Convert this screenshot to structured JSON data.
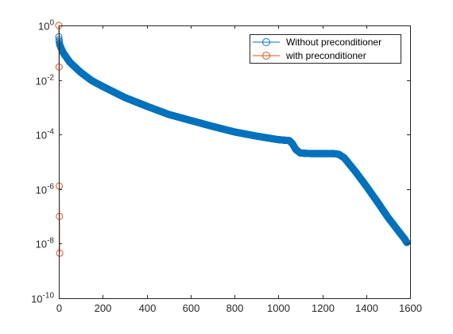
{
  "chart_data": {
    "type": "scatter",
    "title": "",
    "xlabel": "",
    "ylabel": "",
    "xlim": [
      0,
      1600
    ],
    "ylim": [
      1e-10,
      1
    ],
    "yscale": "log",
    "grid": false,
    "legend_position": "top-right",
    "x_ticks": [
      0,
      200,
      400,
      600,
      800,
      1000,
      1200,
      1400,
      1600
    ],
    "x_tick_labels": [
      "0",
      "200",
      "400",
      "600",
      "800",
      "1000",
      "1200",
      "1400",
      "1600"
    ],
    "y_ticks": [
      {
        "value": 1e-10,
        "base": "10",
        "exp": "-10"
      },
      {
        "value": 1e-08,
        "base": "10",
        "exp": "-8"
      },
      {
        "value": 1e-06,
        "base": "10",
        "exp": "-6"
      },
      {
        "value": 0.0001,
        "base": "10",
        "exp": "-4"
      },
      {
        "value": 0.01,
        "base": "10",
        "exp": "-2"
      },
      {
        "value": 1,
        "base": "10",
        "exp": "0"
      }
    ],
    "series": [
      {
        "name": "Without preconditioner",
        "color": "#0072BD",
        "marker": "circle",
        "line": true,
        "keypoints": [
          [
            0,
            0.38
          ],
          [
            1,
            0.3
          ],
          [
            2,
            0.26
          ],
          [
            3,
            0.22
          ],
          [
            5,
            0.19
          ],
          [
            10,
            0.15
          ],
          [
            20,
            0.1
          ],
          [
            50,
            0.045
          ],
          [
            100,
            0.019
          ],
          [
            150,
            0.0095
          ],
          [
            200,
            0.0058
          ],
          [
            300,
            0.0023
          ],
          [
            400,
            0.0011
          ],
          [
            500,
            0.00055
          ],
          [
            600,
            0.00033
          ],
          [
            700,
            0.0002
          ],
          [
            800,
            0.000125
          ],
          [
            900,
            8.8e-05
          ],
          [
            1000,
            6.5e-05
          ],
          [
            1050,
            6e-05
          ],
          [
            1065,
            4.5e-05
          ],
          [
            1080,
            2.8e-05
          ],
          [
            1100,
            2.1e-05
          ],
          [
            1150,
            2e-05
          ],
          [
            1200,
            2e-05
          ],
          [
            1250,
            2e-05
          ],
          [
            1275,
            1.9e-05
          ],
          [
            1300,
            1.4e-05
          ],
          [
            1350,
            4.5e-06
          ],
          [
            1400,
            1.3e-06
          ],
          [
            1450,
            3.5e-07
          ],
          [
            1500,
            9e-08
          ],
          [
            1550,
            2.7e-08
          ],
          [
            1575,
            1.5e-08
          ],
          [
            1585,
            1.1e-08
          ]
        ]
      },
      {
        "name": "with preconditioner",
        "color": "#D95319",
        "marker": "circle",
        "line": true,
        "points": [
          [
            0,
            1
          ],
          [
            1,
            0.03
          ],
          [
            2,
            1.3e-06
          ],
          [
            3,
            1e-07
          ],
          [
            4,
            4.5e-09
          ]
        ]
      }
    ]
  }
}
